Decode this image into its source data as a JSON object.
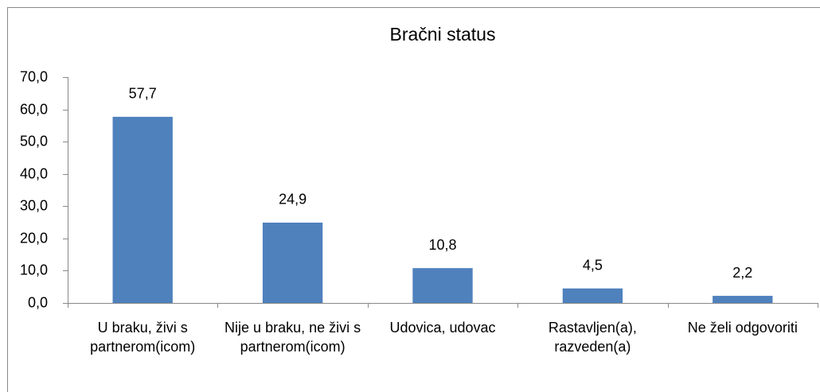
{
  "chart_data": {
    "type": "bar",
    "title": "Bračni status",
    "categories": [
      "U braku, živi s partnerom(icom)",
      "Nije u braku, ne živi s partnerom(icom)",
      "Udovica, udovac",
      "Rastavljen(a), razveden(a)",
      "Ne želi odgovoriti"
    ],
    "values": [
      57.7,
      24.9,
      10.8,
      4.5,
      2.2
    ],
    "value_labels": [
      "57,7",
      "24,9",
      "10,8",
      "4,5",
      "2,2"
    ],
    "color": "#4f81bd",
    "ylim": [
      0,
      70
    ],
    "yticks": [
      {
        "value": 0,
        "label": "0,0"
      },
      {
        "value": 10,
        "label": "10,0"
      },
      {
        "value": 20,
        "label": "20,0"
      },
      {
        "value": 30,
        "label": "30,0"
      },
      {
        "value": 40,
        "label": "40,0"
      },
      {
        "value": 50,
        "label": "50,0"
      },
      {
        "value": 60,
        "label": "60,0"
      },
      {
        "value": 70,
        "label": "70,0"
      }
    ],
    "grid": false
  }
}
